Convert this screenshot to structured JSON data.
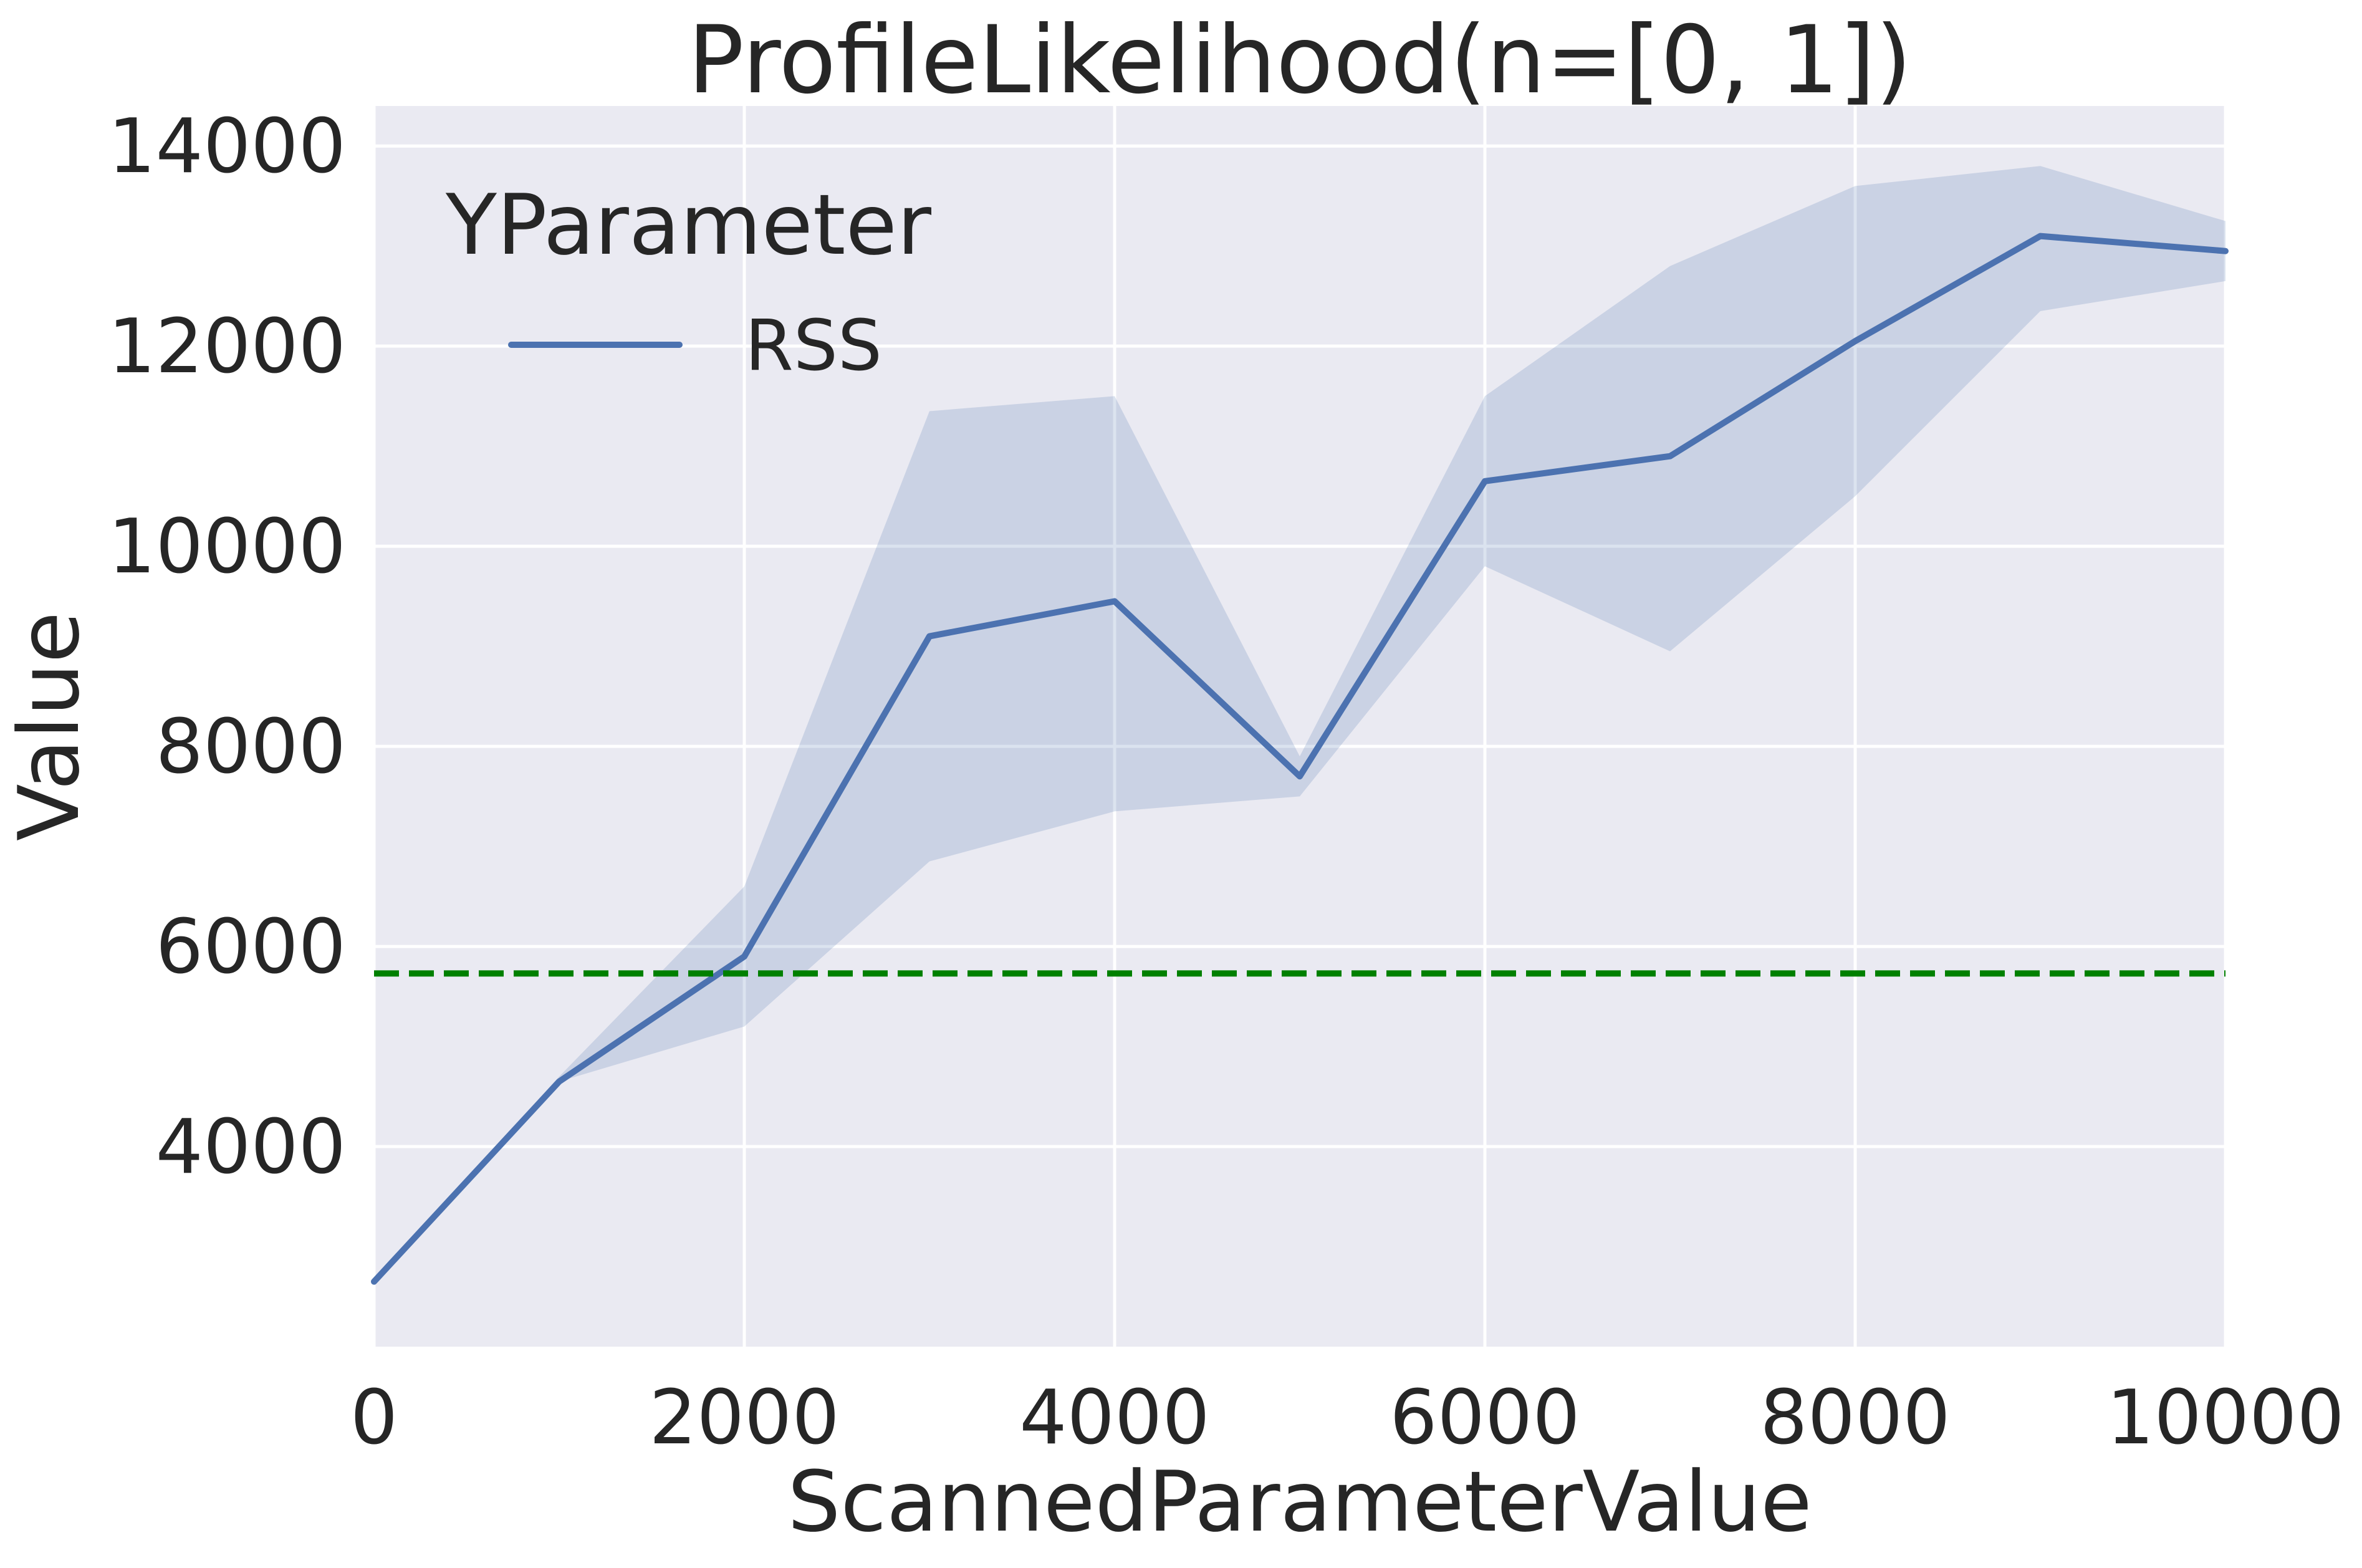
{
  "chart_data": {
    "type": "line",
    "title": "ProfileLikelihood(n=[0, 1])",
    "xlabel": "ScannedParameterValue",
    "ylabel": "Value",
    "xlim": [
      0,
      10000
    ],
    "ylim": [
      2000,
      14400
    ],
    "xticks": [
      0,
      2000,
      4000,
      6000,
      8000,
      10000
    ],
    "yticks": [
      4000,
      6000,
      8000,
      10000,
      12000,
      14000
    ],
    "grid": true,
    "legend": {
      "title": "YParameter",
      "placement": "top-left"
    },
    "series": [
      {
        "name": "RSS",
        "color": "#4c72b0",
        "x": [
          0,
          1000,
          2000,
          3000,
          4000,
          5000,
          6000,
          7000,
          8000,
          9000,
          10000
        ],
        "values": [
          2650,
          4650,
          5900,
          9100,
          9450,
          7700,
          10650,
          10900,
          12050,
          13100,
          12950
        ],
        "band_upper": [
          2650,
          4700,
          6600,
          11350,
          11500,
          7900,
          11500,
          12800,
          13600,
          13800,
          13250
        ],
        "band_lower": [
          2650,
          4650,
          5200,
          6850,
          7350,
          7500,
          9800,
          8950,
          10500,
          12350,
          12650
        ],
        "band_color": "#4c72b0"
      }
    ],
    "reference_lines": [
      {
        "orientation": "horizontal",
        "value": 5730,
        "color": "#008000",
        "style": "dashed"
      }
    ]
  }
}
